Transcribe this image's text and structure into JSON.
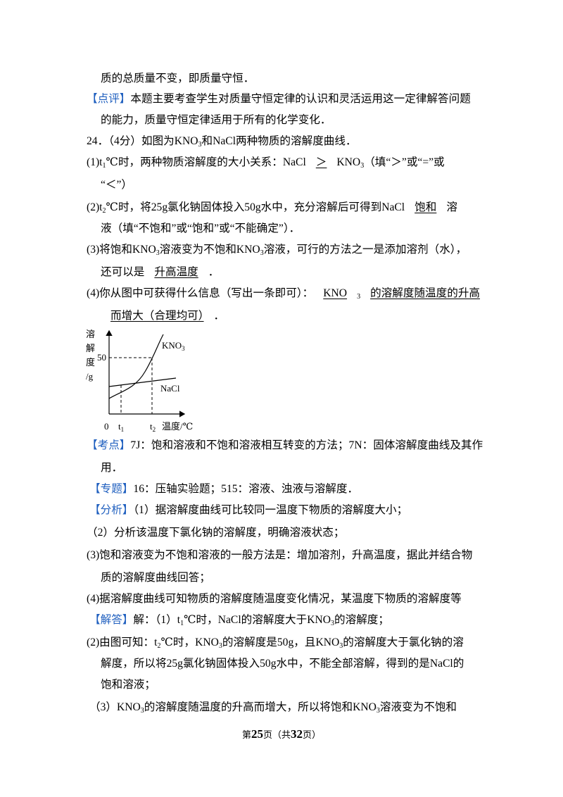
{
  "lines": [
    [
      "质的总质量不变，即质量守恒．"
    ],
    [
      {
        "b": "【点评】"
      },
      "本题主要考查学生对质量守恒定律的认识和灵活运用这一定律解答问题"
    ],
    [
      "的能力，质量守恒定律适用于所有的化学变化．"
    ],
    [
      "24．（4分）如图为KNO",
      {
        "sub": "3"
      },
      "和NaCl两种物质的溶解度曲线．"
    ],
    [
      "(1)t",
      {
        "sub": "1"
      },
      "℃时，两种物质溶解度的大小关系：NaCl",
      {
        "u": "＞"
      },
      "KNO",
      {
        "sub": "3"
      },
      "（填“＞”或“=”或"
    ],
    [
      "“＜”）"
    ],
    [
      "(2)t",
      {
        "sub": "2"
      },
      "℃时，将25g氯化钠固体投入50g水中，充分溶解后可得到NaCl",
      {
        "u": "饱和"
      },
      "溶"
    ],
    [
      "液（填“不饱和”或“饱和”或“不能确定”）．"
    ],
    [
      "(3)将饱和KNO",
      {
        "sub": "3"
      },
      "溶液变为不饱和KNO",
      {
        "sub": "3"
      },
      "溶液，可行的方法之一是添加溶剂（水），"
    ],
    [
      "还可以是",
      {
        "u": "升高温度"
      },
      "．"
    ],
    [
      "(4)你从图中可获得什么信息（写出一条即可）：",
      {
        "u": "KNO"
      },
      {
        "sub": "3"
      },
      {
        "u": "的溶解度随温度的升高"
      }
    ],
    [
      {
        "u": "而增大（合理均可）"
      },
      "．"
    ],
    [
      {
        "b": "【考点】"
      },
      "7J：饱和溶液和不饱和溶液相互转变的方法；7N：固体溶解度曲线及其作"
    ],
    [
      "用．"
    ],
    [
      {
        "b": "【专题】"
      },
      "16：压轴实验题；515：溶液、浊液与溶解度．"
    ],
    [
      {
        "b": "【分析】"
      },
      "（1）据溶解度曲线可比较同一温度下物质的溶解度大小；"
    ],
    [
      "（2）分析该温度下氯化钠的溶解度，明确溶液状态；"
    ],
    [
      "(3)饱和溶液变为不饱和溶液的一般方法是：增加溶剂，升高温度，据此并结合物"
    ],
    [
      "质的溶解度曲线回答；"
    ],
    [
      "(4)据溶解度曲线可知物质的溶解度随温度变化情况，某温度下物质的溶解度等"
    ],
    [
      {
        "b": "【解答】"
      },
      "解：（1）t",
      {
        "sub": "1"
      },
      "℃时，NaCl的溶解度大于KNO",
      {
        "sub": "3"
      },
      "的溶解度；"
    ],
    [
      "(2)由图可知：t",
      {
        "sub": "2"
      },
      "℃时，KNO",
      {
        "sub": "3"
      },
      "的溶解度是50g，且KNO",
      {
        "sub": "3"
      },
      "的溶解度大于氯化钠的溶"
    ],
    [
      "解度，所以将25g氯化钠固体投入50g水中，不能全部溶解，得到的是NaCl的"
    ],
    [
      "饱和溶液；"
    ],
    [
      "（3）KNO",
      {
        "sub": "3"
      },
      "的溶解度随温度的升高而增大，所以将饱和KNO",
      {
        "sub": "3"
      },
      "溶液变为不饱和"
    ]
  ],
  "figure": {
    "y_label": [
      [
        "溶"
      ],
      [
        "解"
      ],
      [
        "度"
      ],
      [
        "/g"
      ]
    ],
    "y_value": [
      [
        "50"
      ]
    ],
    "origin": [
      [
        "0"
      ]
    ],
    "x_marks": [
      [
        "t",
        {
          "sub": "1"
        }
      ],
      [
        "t",
        {
          "sub": "2"
        }
      ]
    ],
    "x_label": [
      [
        "温度/℃"
      ]
    ],
    "curves": [
      [
        "KNO",
        {
          "sub": "3"
        }
      ],
      [
        "NaCl"
      ]
    ]
  },
  "footer": [
    "第",
    {
      "bold": "25"
    },
    "页（共",
    {
      "bold": "32"
    },
    "页）"
  ]
}
